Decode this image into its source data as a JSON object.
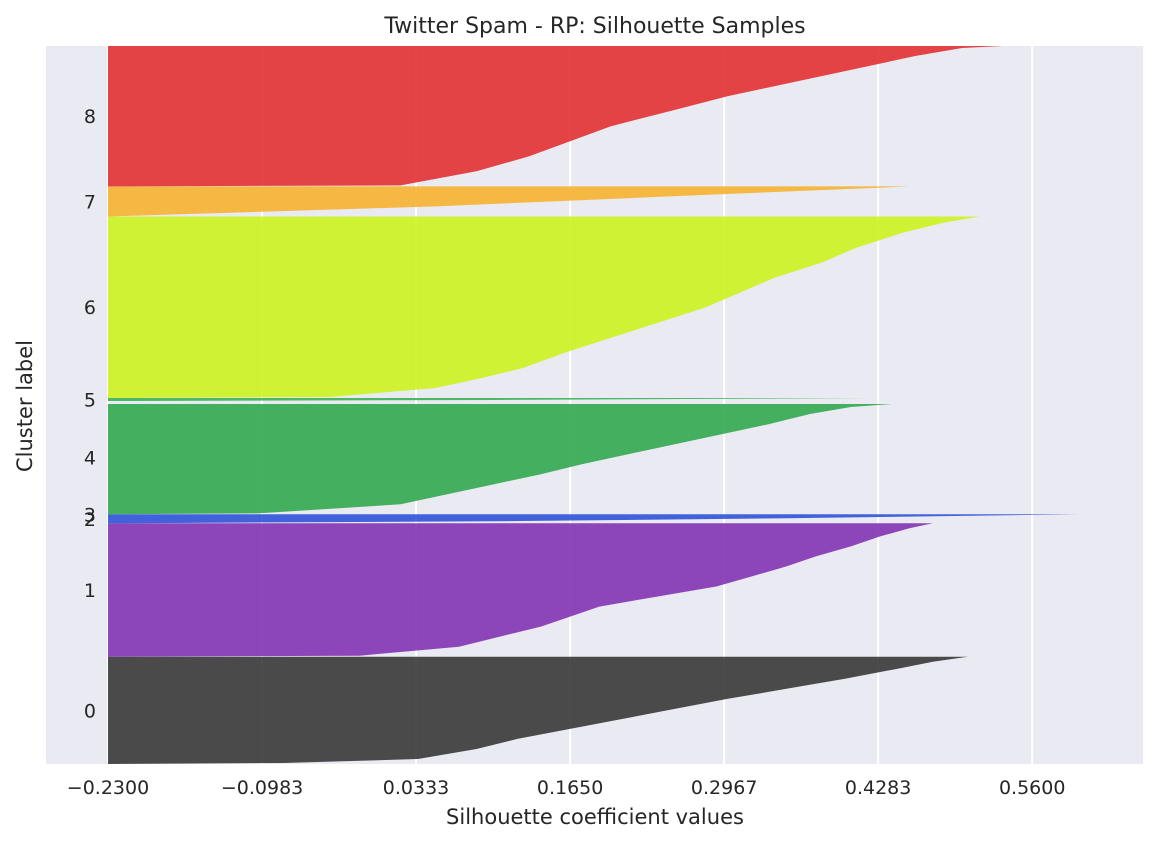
{
  "chart_data": {
    "type": "area",
    "title": "Twitter Spam - RP: Silhouette Samples",
    "xlabel": "Silhouette coefficient values",
    "ylabel": "Cluster label",
    "xlim": [
      -0.23,
      0.6
    ],
    "x_ticks": [
      -0.23,
      -0.0983,
      0.0333,
      0.165,
      0.2967,
      0.4283,
      0.56
    ],
    "x_tick_labels": [
      "−0.2300",
      "−0.0983",
      "0.0333",
      "0.1650",
      "0.2967",
      "0.4283",
      "0.5600"
    ],
    "y_units": "sample index (stacked by cluster)",
    "ylim": [
      0,
      716
    ],
    "grid": true,
    "legend": "none",
    "background": "#eaeaf2",
    "clusters": [
      {
        "label": "0",
        "color": "#333333",
        "y_start": 0,
        "y_end": 107,
        "profile": [
          [
            0,
            -0.23
          ],
          [
            1,
            -0.08
          ],
          [
            5,
            0.035
          ],
          [
            15,
            0.085
          ],
          [
            25,
            0.12
          ],
          [
            35,
            0.165
          ],
          [
            45,
            0.21
          ],
          [
            55,
            0.255
          ],
          [
            65,
            0.3
          ],
          [
            75,
            0.35
          ],
          [
            85,
            0.4
          ],
          [
            95,
            0.445
          ],
          [
            102,
            0.475
          ],
          [
            107,
            0.505
          ]
        ]
      },
      {
        "label": "1",
        "color": "#7f2fb0",
        "y_start": 107,
        "y_end": 240,
        "profile": [
          [
            0,
            -0.23
          ],
          [
            1,
            -0.015
          ],
          [
            10,
            0.07
          ],
          [
            20,
            0.105
          ],
          [
            30,
            0.14
          ],
          [
            40,
            0.165
          ],
          [
            50,
            0.19
          ],
          [
            60,
            0.24
          ],
          [
            70,
            0.29
          ],
          [
            80,
            0.32
          ],
          [
            90,
            0.35
          ],
          [
            100,
            0.375
          ],
          [
            110,
            0.405
          ],
          [
            120,
            0.43
          ],
          [
            128,
            0.455
          ],
          [
            133,
            0.475
          ]
        ]
      },
      {
        "label": "2",
        "color": "#2a4fd8",
        "y_start": 240,
        "y_end": 249,
        "profile": [
          [
            0,
            -0.23
          ],
          [
            2,
            0.1
          ],
          [
            5,
            0.35
          ],
          [
            9,
            0.6
          ]
        ]
      },
      {
        "label": "3",
        "color": "#2a4fd8",
        "y_start": 249,
        "y_end": 249,
        "profile": []
      },
      {
        "label": "4",
        "color": "#2ba64a",
        "y_start": 249,
        "y_end": 362,
        "profile": [
          [
            0,
            -0.23
          ],
          [
            1,
            -0.1
          ],
          [
            10,
            0.02
          ],
          [
            20,
            0.06
          ],
          [
            30,
            0.1
          ],
          [
            40,
            0.14
          ],
          [
            50,
            0.175
          ],
          [
            60,
            0.215
          ],
          [
            70,
            0.255
          ],
          [
            80,
            0.295
          ],
          [
            90,
            0.335
          ],
          [
            100,
            0.37
          ],
          [
            107,
            0.405
          ],
          [
            110,
            0.44
          ]
        ]
      },
      {
        "label": "5",
        "color": "#32b34e",
        "y_start": 362,
        "y_end": 365,
        "profile": [
          [
            0,
            -0.23
          ],
          [
            1,
            0.1
          ],
          [
            3,
            0.42
          ]
        ]
      },
      {
        "label": "6",
        "color": "#ccf21a",
        "y_start": 365,
        "y_end": 546,
        "profile": [
          [
            0,
            -0.23
          ],
          [
            1,
            -0.04
          ],
          [
            10,
            0.05
          ],
          [
            20,
            0.09
          ],
          [
            30,
            0.125
          ],
          [
            45,
            0.16
          ],
          [
            60,
            0.2
          ],
          [
            75,
            0.24
          ],
          [
            90,
            0.28
          ],
          [
            105,
            0.31
          ],
          [
            120,
            0.34
          ],
          [
            135,
            0.38
          ],
          [
            150,
            0.41
          ],
          [
            165,
            0.45
          ],
          [
            175,
            0.485
          ],
          [
            181,
            0.515
          ]
        ]
      },
      {
        "label": "7",
        "color": "#f5b02a",
        "y_start": 546,
        "y_end": 576,
        "profile": [
          [
            0,
            -0.23
          ],
          [
            10,
            0.05
          ],
          [
            20,
            0.25
          ],
          [
            30,
            0.455
          ]
        ]
      },
      {
        "label": "8",
        "color": "#e12b2b",
        "y_start": 576,
        "y_end": 716,
        "profile": [
          [
            0,
            -0.23
          ],
          [
            1,
            0.02
          ],
          [
            15,
            0.085
          ],
          [
            30,
            0.13
          ],
          [
            45,
            0.165
          ],
          [
            60,
            0.2
          ],
          [
            75,
            0.25
          ],
          [
            90,
            0.3
          ],
          [
            105,
            0.36
          ],
          [
            120,
            0.42
          ],
          [
            130,
            0.46
          ],
          [
            138,
            0.5
          ],
          [
            140,
            0.535
          ]
        ]
      }
    ]
  }
}
